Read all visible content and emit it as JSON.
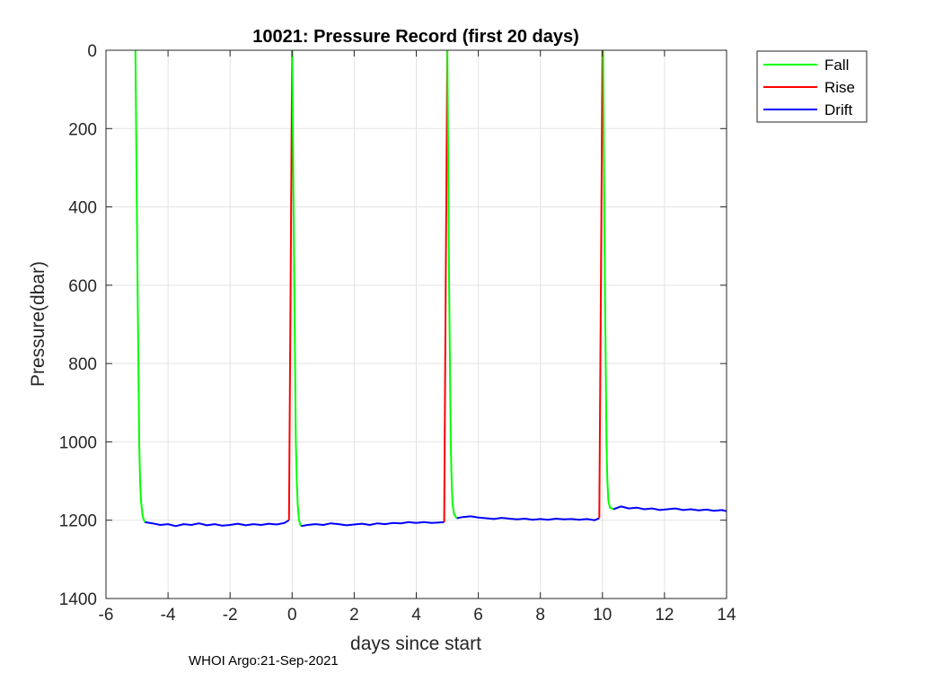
{
  "chart_data": {
    "type": "line",
    "title": "10021: Pressure Record (first 20 days)",
    "xlabel": "days since start",
    "ylabel": "Pressure(dbar)",
    "xlim": [
      -6,
      14
    ],
    "ylim": [
      0,
      1400
    ],
    "y_reversed": true,
    "xticks": [
      "-6",
      "-4",
      "-2",
      "0",
      "2",
      "4",
      "6",
      "8",
      "10",
      "12",
      "14"
    ],
    "yticks": [
      "0",
      "200",
      "400",
      "600",
      "800",
      "1000",
      "1200",
      "1400"
    ],
    "grid": true,
    "legend_position": "outside-top-right",
    "footer": "WHOI Argo:21-Sep-2021",
    "series": [
      {
        "name": "Fall",
        "color": "#00ff00",
        "segments": [
          [
            [
              -5.05,
              0
            ],
            [
              -4.98,
              600
            ],
            [
              -4.93,
              1000
            ],
            [
              -4.9,
              1100
            ],
            [
              -4.87,
              1150
            ],
            [
              -4.82,
              1190
            ],
            [
              -4.75,
              1205
            ]
          ],
          [
            [
              0.0,
              0
            ],
            [
              0.07,
              600
            ],
            [
              0.12,
              1000
            ],
            [
              0.15,
              1100
            ],
            [
              0.18,
              1160
            ],
            [
              0.22,
              1200
            ],
            [
              0.28,
              1215
            ]
          ],
          [
            [
              5.0,
              0
            ],
            [
              5.06,
              600
            ],
            [
              5.11,
              1000
            ],
            [
              5.14,
              1100
            ],
            [
              5.17,
              1160
            ],
            [
              5.22,
              1185
            ],
            [
              5.3,
              1195
            ]
          ],
          [
            [
              10.02,
              0
            ],
            [
              10.08,
              600
            ],
            [
              10.13,
              1000
            ],
            [
              10.16,
              1100
            ],
            [
              10.19,
              1150
            ],
            [
              10.24,
              1168
            ],
            [
              10.35,
              1172
            ]
          ]
        ]
      },
      {
        "name": "Rise",
        "color": "#ff0000",
        "segments": [
          [
            [
              -0.1,
              1200
            ],
            [
              -0.05,
              600
            ],
            [
              0.0,
              0
            ]
          ],
          [
            [
              4.9,
              1205
            ],
            [
              4.95,
              600
            ],
            [
              5.0,
              0
            ]
          ],
          [
            [
              9.9,
              1195
            ],
            [
              9.95,
              600
            ],
            [
              10.0,
              0
            ]
          ]
        ]
      },
      {
        "name": "Drift",
        "color": "#0000ff",
        "segments": [
          [
            [
              -4.75,
              1205
            ],
            [
              -4.5,
              1208
            ],
            [
              -4.25,
              1212
            ],
            [
              -4.0,
              1210
            ],
            [
              -3.75,
              1215
            ],
            [
              -3.5,
              1210
            ],
            [
              -3.25,
              1212
            ],
            [
              -3.0,
              1208
            ],
            [
              -2.75,
              1213
            ],
            [
              -2.5,
              1210
            ],
            [
              -2.25,
              1214
            ],
            [
              -2.0,
              1212
            ],
            [
              -1.75,
              1209
            ],
            [
              -1.5,
              1213
            ],
            [
              -1.25,
              1210
            ],
            [
              -1.0,
              1212
            ],
            [
              -0.75,
              1209
            ],
            [
              -0.5,
              1211
            ],
            [
              -0.25,
              1207
            ],
            [
              -0.1,
              1200
            ]
          ],
          [
            [
              0.28,
              1215
            ],
            [
              0.5,
              1212
            ],
            [
              0.75,
              1210
            ],
            [
              1.0,
              1212
            ],
            [
              1.25,
              1208
            ],
            [
              1.5,
              1210
            ],
            [
              1.75,
              1213
            ],
            [
              2.0,
              1211
            ],
            [
              2.25,
              1209
            ],
            [
              2.5,
              1212
            ],
            [
              2.75,
              1208
            ],
            [
              3.0,
              1210
            ],
            [
              3.25,
              1207
            ],
            [
              3.5,
              1208
            ],
            [
              3.75,
              1205
            ],
            [
              4.0,
              1207
            ],
            [
              4.25,
              1205
            ],
            [
              4.5,
              1207
            ],
            [
              4.75,
              1206
            ],
            [
              4.9,
              1205
            ]
          ],
          [
            [
              5.3,
              1195
            ],
            [
              5.5,
              1192
            ],
            [
              5.75,
              1190
            ],
            [
              6.0,
              1193
            ],
            [
              6.25,
              1195
            ],
            [
              6.5,
              1197
            ],
            [
              6.75,
              1194
            ],
            [
              7.0,
              1196
            ],
            [
              7.25,
              1198
            ],
            [
              7.5,
              1196
            ],
            [
              7.75,
              1199
            ],
            [
              8.0,
              1197
            ],
            [
              8.25,
              1199
            ],
            [
              8.5,
              1196
            ],
            [
              8.75,
              1198
            ],
            [
              9.0,
              1197
            ],
            [
              9.25,
              1199
            ],
            [
              9.5,
              1197
            ],
            [
              9.75,
              1200
            ],
            [
              9.9,
              1195
            ]
          ],
          [
            [
              10.35,
              1172
            ],
            [
              10.6,
              1165
            ],
            [
              10.85,
              1170
            ],
            [
              11.1,
              1168
            ],
            [
              11.35,
              1172
            ],
            [
              11.6,
              1170
            ],
            [
              11.85,
              1174
            ],
            [
              12.1,
              1172
            ],
            [
              12.35,
              1170
            ],
            [
              12.6,
              1174
            ],
            [
              12.85,
              1172
            ],
            [
              13.1,
              1175
            ],
            [
              13.35,
              1173
            ],
            [
              13.6,
              1176
            ],
            [
              13.85,
              1174
            ],
            [
              14.0,
              1177
            ]
          ]
        ]
      }
    ]
  }
}
